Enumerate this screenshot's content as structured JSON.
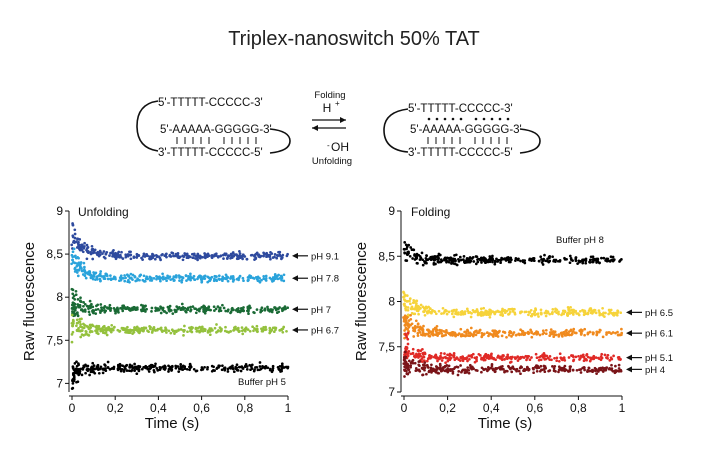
{
  "figure_title": "Triplex-nanoswitch 50% TAT",
  "schematic": {
    "left": {
      "top_strand": "5'-TTTTT-CCCCC-3'",
      "middle_strand": "5'-AAAAA-GGGGG-3'",
      "bottom_strand": "3'-TTTTT-CCCCC-5'"
    },
    "right": {
      "top_strand": "5'-TTTTT-CCCCC-3'",
      "middle_strand": "5'-AAAAA-GGGGG-3'",
      "bottom_strand": "3'-TTTTT-CCCCC-5'"
    },
    "folding_label": "Folding",
    "proton_label": "H",
    "proton_sup": "+",
    "hydroxide_label": "OH",
    "hydroxide_sup": "-",
    "unfolding_label": "Unfolding"
  },
  "chart_data": [
    {
      "type": "scatter",
      "title": "Unfolding",
      "xlabel": "Time (s)",
      "ylabel": "Raw fluorescence",
      "xlim": [
        0,
        1
      ],
      "ylim": [
        6.9,
        9
      ],
      "xticks": [
        "0",
        "0,2",
        "0,4",
        "0,6",
        "0,8",
        "1"
      ],
      "yticks": [
        "7",
        "7,5",
        "8",
        "8,5",
        "9"
      ],
      "series": [
        {
          "name": "pH 9.1",
          "plateau": 8.48,
          "start": 8.75,
          "color": "#2e4a9e"
        },
        {
          "name": "pH 7.8",
          "plateau": 8.22,
          "start": 8.45,
          "color": "#2aa3db"
        },
        {
          "name": "pH 7",
          "plateau": 7.86,
          "start": 7.95,
          "color": "#1a6a35"
        },
        {
          "name": "pH 6.7",
          "plateau": 7.62,
          "start": 7.68,
          "color": "#94c13d"
        },
        {
          "name": "Buffer pH 5",
          "plateau": 7.18,
          "start": 7.1,
          "color": "#000000"
        }
      ]
    },
    {
      "type": "scatter",
      "title": "Folding",
      "xlabel": "Time (s)",
      "ylabel": "Raw fluorescence",
      "xlim": [
        0,
        1
      ],
      "ylim": [
        7,
        9
      ],
      "xticks": [
        "0",
        "0,2",
        "0,4",
        "0,6",
        "0,8",
        "1"
      ],
      "yticks": [
        "7",
        "7,5",
        "8",
        "8,5",
        "9"
      ],
      "series": [
        {
          "name": "Buffer pH 8",
          "plateau": 8.46,
          "start": 8.6,
          "color": "#000000"
        },
        {
          "name": "pH 6.5",
          "plateau": 7.88,
          "start": 8.0,
          "color": "#f6d33a"
        },
        {
          "name": "pH 6.1",
          "plateau": 7.65,
          "start": 7.78,
          "color": "#f08a1e"
        },
        {
          "name": "pH 5.1",
          "plateau": 7.38,
          "start": 7.5,
          "color": "#e02a26"
        },
        {
          "name": "pH 4",
          "plateau": 7.25,
          "start": 7.3,
          "color": "#7a1418"
        }
      ]
    }
  ]
}
